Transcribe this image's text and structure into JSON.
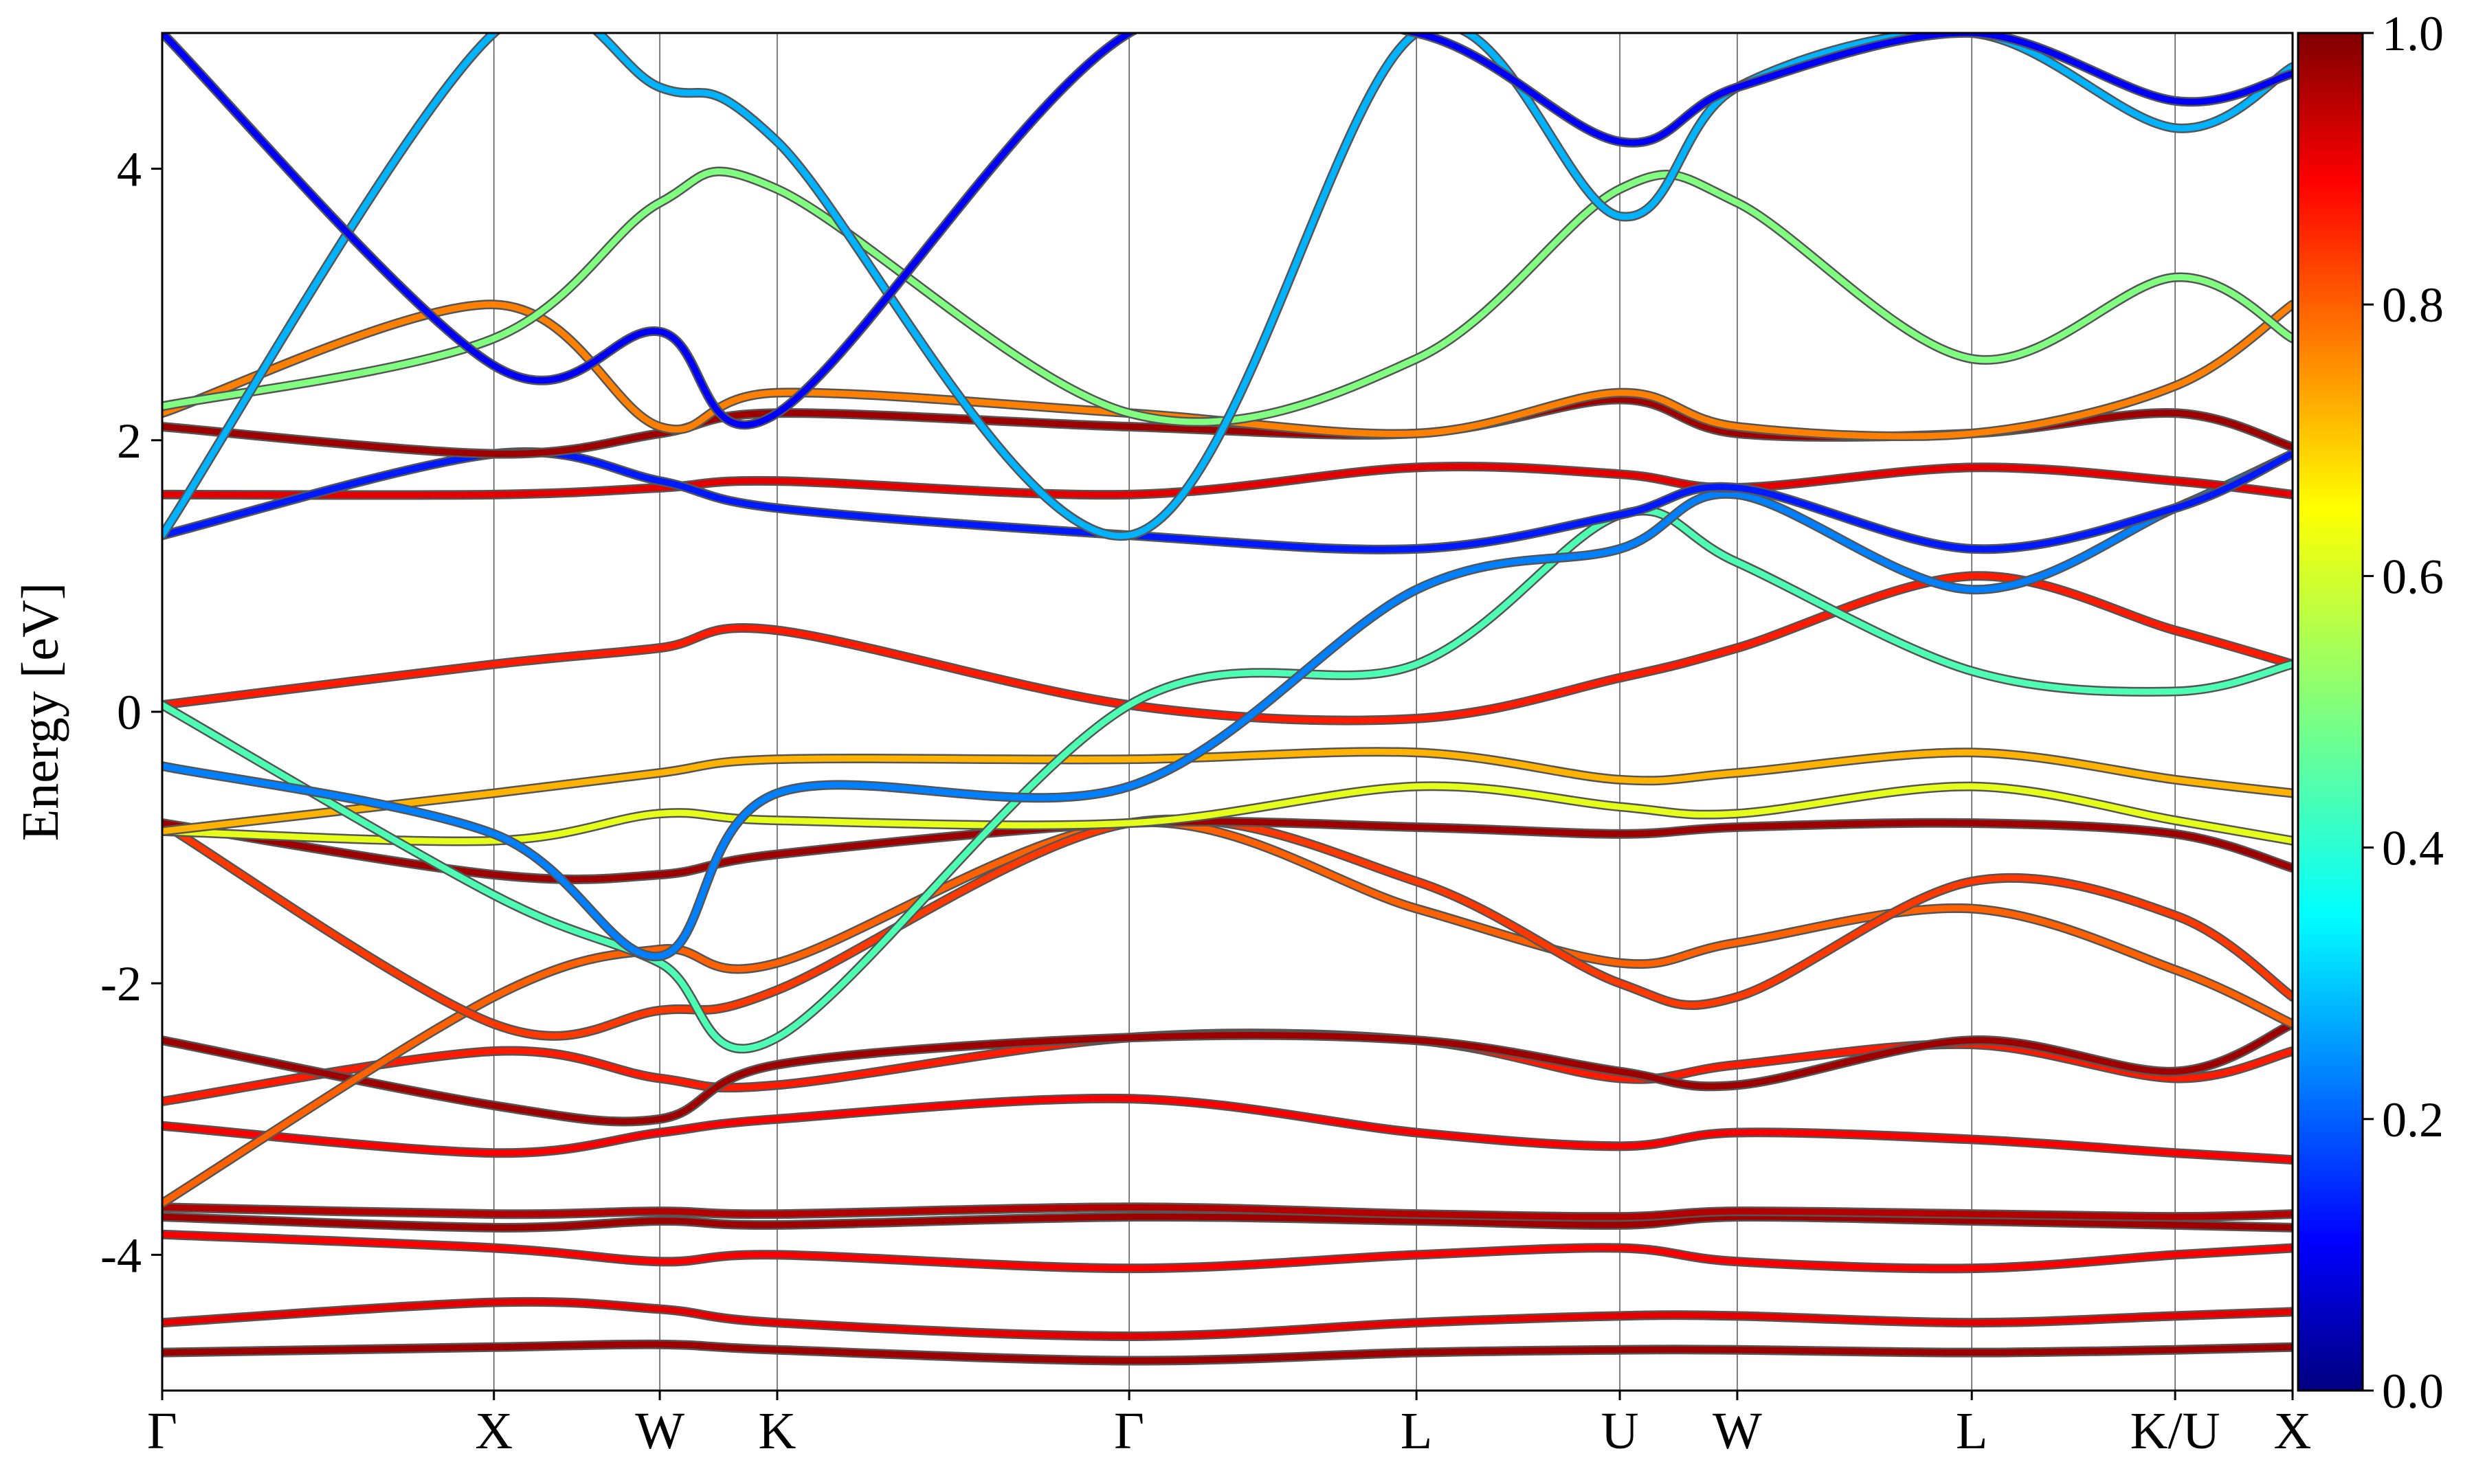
{
  "chart_data": {
    "type": "line",
    "subtype": "band-structure-projected",
    "ylabel": "Energy [eV]",
    "ylim": [
      -5,
      5
    ],
    "y_ticks": [
      -4,
      -2,
      0,
      2,
      4
    ],
    "y_tick_labels": [
      "-4",
      "-2",
      "0",
      "2",
      "4"
    ],
    "k_points": [
      {
        "label": "Γ",
        "x": 0.0
      },
      {
        "label": "X",
        "x": 1.0
      },
      {
        "label": "W",
        "x": 1.5
      },
      {
        "label": "K",
        "x": 1.854
      },
      {
        "label": "Γ",
        "x": 2.915
      },
      {
        "label": "L",
        "x": 3.781
      },
      {
        "label": "U",
        "x": 4.394
      },
      {
        "label": "W",
        "x": 4.748
      },
      {
        "label": "L",
        "x": 5.455
      },
      {
        "label": "K/U",
        "x": 6.068
      },
      {
        "label": "X",
        "x": 6.422
      }
    ],
    "vertical_lines_at_k_points": true,
    "colorbar": {
      "colormap": "jet",
      "range": [
        0.0,
        1.0
      ],
      "tick_labels": [
        "0.0",
        "0.2",
        "0.4",
        "0.6",
        "0.8",
        "1.0"
      ]
    },
    "grid": false,
    "series": [
      {
        "x": [
          0,
          1.0,
          1.5,
          1.854,
          2.915,
          3.781,
          4.394,
          4.748,
          5.455,
          6.068,
          6.422
        ],
        "values": [
          -4.72,
          -4.68,
          -4.66,
          -4.7,
          -4.78,
          -4.72,
          -4.7,
          -4.7,
          -4.72,
          -4.7,
          -4.68
        ],
        "weight": 0.97
      },
      {
        "x": [
          0,
          1.0,
          1.5,
          1.854,
          2.915,
          3.781,
          4.394,
          4.748,
          5.455,
          6.068,
          6.422
        ],
        "values": [
          -4.5,
          -4.35,
          -4.4,
          -4.5,
          -4.6,
          -4.5,
          -4.45,
          -4.45,
          -4.5,
          -4.45,
          -4.42
        ],
        "weight": 0.9
      },
      {
        "x": [
          0,
          1.0,
          1.5,
          1.854,
          2.915,
          3.781,
          4.394,
          4.748,
          5.455,
          6.068,
          6.422
        ],
        "values": [
          -3.85,
          -3.95,
          -4.05,
          -4.0,
          -4.1,
          -4.0,
          -3.95,
          -4.05,
          -4.1,
          -4.0,
          -3.95
        ],
        "weight": 0.88
      },
      {
        "x": [
          0,
          1.0,
          1.5,
          1.854,
          2.915,
          3.781,
          4.394,
          4.748,
          5.455,
          6.068,
          6.422
        ],
        "values": [
          -3.72,
          -3.8,
          -3.75,
          -3.78,
          -3.72,
          -3.75,
          -3.78,
          -3.72,
          -3.75,
          -3.78,
          -3.8
        ],
        "weight": 0.97
      },
      {
        "x": [
          0,
          1.0,
          1.5,
          1.854,
          2.915,
          3.781,
          4.394,
          4.748,
          5.455,
          6.068,
          6.422
        ],
        "values": [
          -3.65,
          -3.7,
          -3.68,
          -3.7,
          -3.65,
          -3.7,
          -3.72,
          -3.68,
          -3.7,
          -3.72,
          -3.7
        ],
        "weight": 0.95
      },
      {
        "x": [
          0,
          1.0,
          1.5,
          1.854,
          2.915,
          3.781,
          4.394,
          4.748,
          5.455,
          6.068,
          6.422
        ],
        "values": [
          -3.05,
          -3.25,
          -3.1,
          -3.0,
          -2.85,
          -3.1,
          -3.2,
          -3.1,
          -3.15,
          -3.25,
          -3.3
        ],
        "weight": 0.88
      },
      {
        "x": [
          0,
          1.0,
          1.5,
          1.854,
          2.915,
          3.781,
          4.394,
          4.748,
          5.455,
          6.068,
          6.422
        ],
        "values": [
          -2.87,
          -2.5,
          -2.7,
          -2.75,
          -2.4,
          -2.42,
          -2.7,
          -2.6,
          -2.45,
          -2.7,
          -2.5
        ],
        "weight": 0.85
      },
      {
        "x": [
          0,
          1.0,
          1.5,
          1.854,
          2.915,
          3.781,
          4.394,
          4.748,
          5.455,
          6.068,
          6.422
        ],
        "values": [
          -2.42,
          -2.9,
          -3.0,
          -2.6,
          -2.4,
          -2.42,
          -2.65,
          -2.75,
          -2.42,
          -2.65,
          -2.3
        ],
        "weight": 0.97
      },
      {
        "x": [
          0,
          1.0,
          1.5,
          1.854,
          2.915,
          3.781,
          4.394,
          4.748,
          5.455,
          6.068,
          6.422
        ],
        "values": [
          -3.62,
          -2.1,
          -1.75,
          -1.85,
          -0.82,
          -1.45,
          -1.85,
          -1.7,
          -1.45,
          -1.9,
          -2.3
        ],
        "weight": 0.78
      },
      {
        "x": [
          0,
          1.0,
          1.5,
          1.854,
          2.915,
          3.781,
          4.394,
          4.748,
          5.455,
          6.068,
          6.422
        ],
        "values": [
          -0.82,
          -2.3,
          -2.2,
          -2.05,
          -0.82,
          -1.25,
          -2.0,
          -2.1,
          -1.25,
          -1.5,
          -2.1
        ],
        "weight": 0.82
      },
      {
        "x": [
          0,
          1.0,
          1.5,
          1.854,
          2.915,
          3.781,
          4.394,
          4.748,
          5.455,
          6.068,
          6.422
        ],
        "values": [
          -0.82,
          -1.2,
          -1.2,
          -1.05,
          -0.82,
          -0.85,
          -0.9,
          -0.85,
          -0.82,
          -0.9,
          -1.15
        ],
        "weight": 0.97
      },
      {
        "x": [
          0,
          1.0,
          1.5,
          1.854,
          2.915,
          3.781,
          4.394,
          4.748,
          5.455,
          6.068,
          6.422
        ],
        "values": [
          -0.88,
          -0.95,
          -0.75,
          -0.8,
          -0.82,
          -0.55,
          -0.7,
          -0.75,
          -0.55,
          -0.8,
          -0.95
        ],
        "weight": 0.6
      },
      {
        "x": [
          0,
          1.0,
          1.5,
          1.854,
          2.915,
          3.781,
          4.394,
          4.748,
          5.455,
          6.068,
          6.422
        ],
        "values": [
          -0.88,
          -0.6,
          -0.45,
          -0.35,
          -0.35,
          -0.3,
          -0.5,
          -0.45,
          -0.3,
          -0.5,
          -0.6
        ],
        "weight": 0.7
      },
      {
        "x": [
          0,
          1.0,
          1.5,
          1.854,
          2.915,
          3.781,
          4.394,
          4.748,
          5.455,
          6.068,
          6.422
        ],
        "values": [
          0.05,
          0.35,
          0.47,
          0.6,
          0.05,
          -0.05,
          0.25,
          0.47,
          1.0,
          0.6,
          0.35
        ],
        "weight": 0.85
      },
      {
        "x": [
          0,
          1.0,
          1.5,
          1.854,
          2.915,
          3.781,
          4.394,
          4.748,
          5.455,
          6.068,
          6.422
        ],
        "values": [
          0.05,
          -1.35,
          -1.85,
          -2.4,
          0.05,
          0.35,
          1.45,
          1.1,
          0.3,
          0.15,
          0.35
        ],
        "weight": 0.45
      },
      {
        "x": [
          0,
          1.0,
          1.5,
          1.854,
          2.915,
          3.781,
          4.394,
          4.748,
          5.455,
          6.068,
          6.422
        ],
        "values": [
          -0.4,
          -0.9,
          -1.8,
          -0.6,
          -0.55,
          0.9,
          1.2,
          1.6,
          0.9,
          1.5,
          1.9
        ],
        "weight": 0.25
      },
      {
        "x": [
          0,
          1.0,
          1.5,
          1.854,
          2.915,
          3.781,
          4.394,
          4.748,
          5.455,
          6.068,
          6.422
        ],
        "values": [
          1.6,
          1.6,
          1.65,
          1.7,
          1.6,
          1.8,
          1.75,
          1.65,
          1.8,
          1.7,
          1.6
        ],
        "weight": 0.9
      },
      {
        "x": [
          0,
          1.0,
          1.5,
          1.854,
          2.915,
          3.781,
          4.394,
          4.748,
          5.455,
          6.068,
          6.422
        ],
        "values": [
          1.3,
          1.9,
          1.7,
          1.5,
          1.3,
          1.2,
          1.45,
          1.65,
          1.2,
          1.5,
          1.9
        ],
        "weight": 0.15
      },
      {
        "x": [
          0,
          1.0,
          1.5,
          1.854,
          2.915,
          3.781,
          4.394,
          4.748,
          5.455,
          6.068,
          6.422
        ],
        "values": [
          2.1,
          1.9,
          2.05,
          2.2,
          2.1,
          2.05,
          2.3,
          2.05,
          2.05,
          2.2,
          1.95
        ],
        "weight": 0.97
      },
      {
        "x": [
          0,
          1.0,
          1.5,
          1.854,
          2.915,
          3.781,
          4.394,
          4.748,
          5.455,
          6.068,
          6.422
        ],
        "values": [
          2.2,
          3.0,
          2.1,
          2.35,
          2.2,
          2.05,
          2.35,
          2.1,
          2.05,
          2.4,
          3.0
        ],
        "weight": 0.75
      },
      {
        "x": [
          0,
          1.0,
          1.5,
          1.854,
          2.915,
          3.781,
          4.394,
          4.748,
          5.455,
          6.068,
          6.422
        ],
        "values": [
          2.25,
          2.75,
          3.75,
          3.85,
          2.2,
          2.6,
          3.85,
          3.75,
          2.6,
          3.2,
          2.75
        ],
        "weight": 0.5
      },
      {
        "x": [
          0,
          1.0,
          1.5,
          1.854,
          2.915,
          3.781,
          4.394,
          4.748,
          5.455,
          6.068,
          6.422
        ],
        "values": [
          1.3,
          5.0,
          4.6,
          4.2,
          1.3,
          5.0,
          3.65,
          4.6,
          5.0,
          4.3,
          4.75
        ],
        "weight": 0.3
      },
      {
        "x": [
          0,
          1.0,
          1.5,
          1.854,
          2.915,
          3.781,
          4.394,
          4.748,
          5.455,
          6.068,
          6.422
        ],
        "values": [
          5.0,
          2.55,
          2.8,
          2.2,
          5.0,
          5.0,
          4.2,
          4.6,
          5.0,
          4.5,
          4.7
        ],
        "weight": 0.12
      }
    ]
  }
}
